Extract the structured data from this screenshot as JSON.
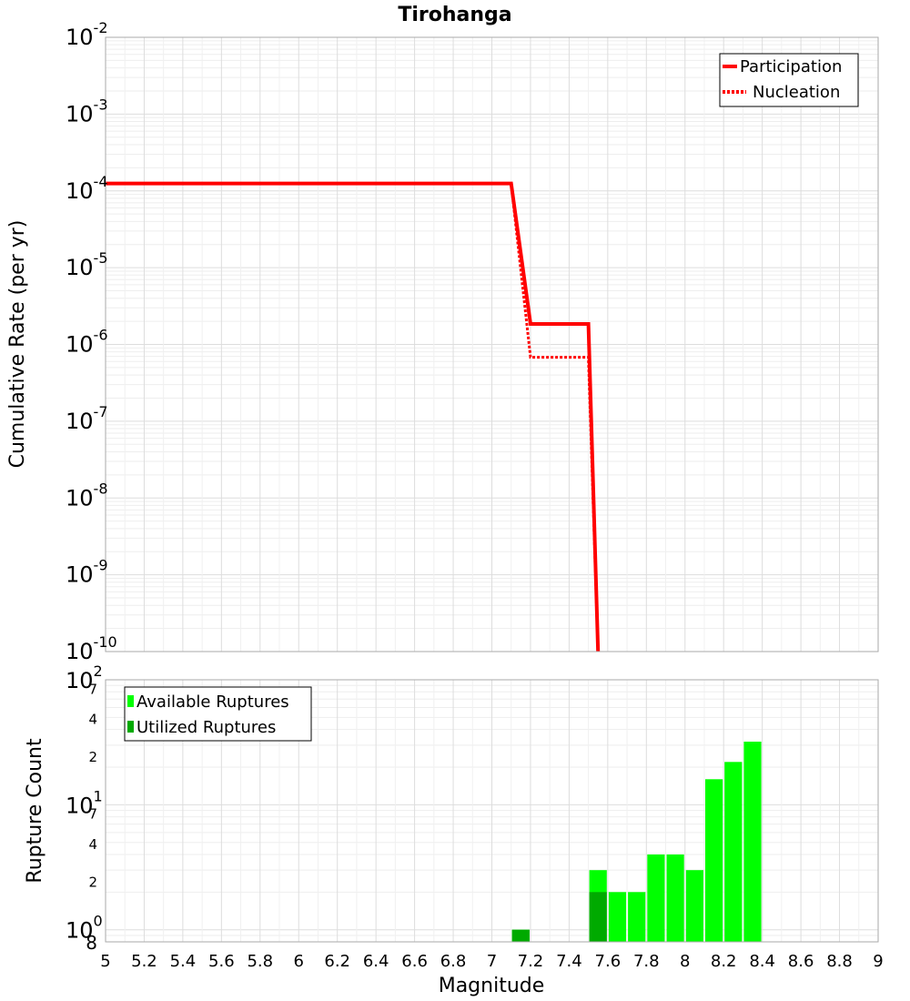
{
  "chart_data": [
    {
      "type": "line",
      "title": "Tirohanga",
      "xlabel": "Magnitude",
      "ylabel": "Cumulative Rate (per yr)",
      "xlim": [
        5,
        9
      ],
      "ylim": [
        1e-10,
        0.01
      ],
      "yscale": "log",
      "ytick_base": "10",
      "ytick_exponents": [
        "-10",
        "-9",
        "-8",
        "-7",
        "-6",
        "-5",
        "-4",
        "-3",
        "-2"
      ],
      "grid": true,
      "legend": "top-right",
      "series": [
        {
          "name": "Participation",
          "color": "#ff0000",
          "style": "solid",
          "x": [
            5.0,
            7.1,
            7.2,
            7.5,
            7.55
          ],
          "y": [
            0.000125,
            0.000125,
            1.85e-06,
            1.85e-06,
            1e-10
          ]
        },
        {
          "name": "Nucleation",
          "color": "#ff0000",
          "style": "dotted",
          "x": [
            5.0,
            7.1,
            7.2,
            7.5,
            7.55
          ],
          "y": [
            0.000125,
            0.000125,
            6.8e-07,
            6.8e-07,
            1e-10
          ]
        }
      ]
    },
    {
      "type": "bar",
      "xlabel": "Magnitude",
      "ylabel": "Rupture Count",
      "xlim": [
        5,
        9
      ],
      "ylim": [
        0.8,
        100
      ],
      "yscale": "log",
      "x_ticks": [
        "5",
        "5.2",
        "5.4",
        "5.6",
        "5.8",
        "6",
        "6.2",
        "6.4",
        "6.6",
        "6.8",
        "7",
        "7.2",
        "7.4",
        "7.6",
        "7.8",
        "8",
        "8.2",
        "8.4",
        "8.6",
        "8.8",
        "9"
      ],
      "y_major_base": "10",
      "y_major_exponents": [
        "0",
        "1",
        "2"
      ],
      "y_minor_labels": [
        "8",
        "2",
        "4",
        "7",
        "2",
        "4",
        "7"
      ],
      "grid": true,
      "legend": "top-left",
      "bin_width": 0.1,
      "series": [
        {
          "name": "Available Ruptures",
          "color": "#00ff00",
          "x": [
            7.15,
            7.55,
            7.65,
            7.75,
            7.85,
            7.95,
            8.05,
            8.15,
            8.25,
            8.35
          ],
          "values": [
            1,
            3,
            2,
            2,
            4,
            4,
            3,
            16,
            22,
            32
          ]
        },
        {
          "name": "Utilized Ruptures",
          "color": "#00aa00",
          "x": [
            7.15,
            7.55
          ],
          "values": [
            1,
            2
          ]
        }
      ]
    }
  ]
}
